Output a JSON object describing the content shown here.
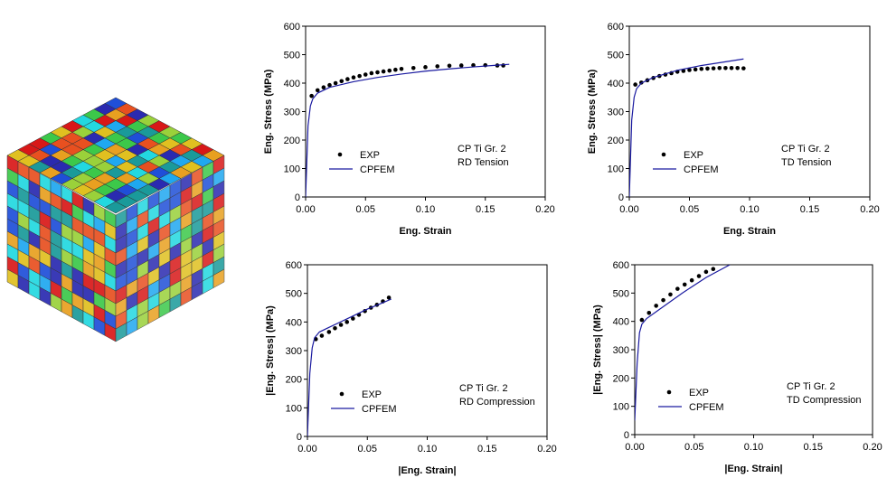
{
  "chart_data": [
    {
      "type": "line",
      "xlabel": "Eng. Strain",
      "ylabel": "Eng. Stress (MPa)",
      "annotation": [
        "CP Ti Gr. 2",
        "RD Tension"
      ],
      "xlim": [
        0,
        0.2
      ],
      "ylim": [
        0,
        600
      ],
      "xticks": [
        {
          "value": 0,
          "label": "0.00"
        },
        {
          "value": 0.05,
          "label": "0.05"
        },
        {
          "value": 0.1,
          "label": "0.10"
        },
        {
          "value": 0.15,
          "label": "0.15"
        },
        {
          "value": 0.2,
          "label": "0.20"
        }
      ],
      "yticks": [
        0,
        100,
        200,
        300,
        400,
        500,
        600
      ],
      "series": [
        {
          "name": "EXP",
          "style": "markers",
          "color": "#000000",
          "x": [
            0.005,
            0.01,
            0.015,
            0.02,
            0.025,
            0.03,
            0.035,
            0.04,
            0.045,
            0.05,
            0.055,
            0.06,
            0.065,
            0.07,
            0.075,
            0.08,
            0.09,
            0.1,
            0.11,
            0.12,
            0.13,
            0.14,
            0.15,
            0.16,
            0.165
          ],
          "values": [
            355,
            375,
            385,
            393,
            400,
            407,
            414,
            420,
            425,
            430,
            435,
            438,
            441,
            444,
            447,
            450,
            453,
            456,
            459,
            461,
            462,
            463,
            463,
            462,
            462
          ]
        },
        {
          "name": "CPFEM",
          "style": "line",
          "color": "#1a1aa0",
          "x": [
            0,
            0.002,
            0.004,
            0.006,
            0.01,
            0.02,
            0.04,
            0.06,
            0.08,
            0.1,
            0.12,
            0.14,
            0.16,
            0.17
          ],
          "values": [
            0,
            250,
            320,
            345,
            365,
            385,
            405,
            420,
            432,
            442,
            450,
            457,
            463,
            466
          ]
        }
      ]
    },
    {
      "type": "line",
      "xlabel": "Eng. Strain",
      "ylabel": "Eng. Stress (MPa)",
      "annotation": [
        "CP Ti Gr. 2",
        "TD Tension"
      ],
      "xlim": [
        0,
        0.2
      ],
      "ylim": [
        0,
        600
      ],
      "xticks": [
        {
          "value": 0,
          "label": "0.00"
        },
        {
          "value": 0.05,
          "label": "0.05"
        },
        {
          "value": 0.1,
          "label": "0.10"
        },
        {
          "value": 0.15,
          "label": "0.15"
        },
        {
          "value": 0.2,
          "label": "0.20"
        }
      ],
      "yticks": [
        0,
        100,
        200,
        300,
        400,
        500,
        600
      ],
      "series": [
        {
          "name": "EXP",
          "style": "markers",
          "color": "#000000",
          "x": [
            0.005,
            0.01,
            0.015,
            0.02,
            0.025,
            0.03,
            0.035,
            0.04,
            0.045,
            0.05,
            0.055,
            0.06,
            0.065,
            0.07,
            0.075,
            0.08,
            0.085,
            0.09,
            0.095
          ],
          "values": [
            395,
            402,
            410,
            418,
            425,
            430,
            435,
            440,
            443,
            446,
            448,
            450,
            451,
            452,
            453,
            453,
            453,
            453,
            452
          ]
        },
        {
          "name": "CPFEM",
          "style": "line",
          "color": "#1a1aa0",
          "x": [
            0,
            0.002,
            0.004,
            0.006,
            0.01,
            0.02,
            0.04,
            0.06,
            0.08,
            0.095
          ],
          "values": [
            0,
            270,
            350,
            380,
            400,
            420,
            445,
            462,
            475,
            485
          ]
        }
      ]
    },
    {
      "type": "line",
      "xlabel": "|Eng. Strain|",
      "ylabel": "|Eng. Stress| (MPa)",
      "annotation": [
        "CP Ti Gr. 2",
        "RD Compression"
      ],
      "xlim": [
        0,
        0.2
      ],
      "ylim": [
        0,
        600
      ],
      "xticks": [
        {
          "value": 0,
          "label": "0.00"
        },
        {
          "value": 0.05,
          "label": "0.05"
        },
        {
          "value": 0.1,
          "label": "0.10"
        },
        {
          "value": 0.15,
          "label": "0.15"
        },
        {
          "value": 0.2,
          "label": "0.20"
        }
      ],
      "yticks": [
        0,
        100,
        200,
        300,
        400,
        500,
        600
      ],
      "series": [
        {
          "name": "EXP",
          "style": "markers",
          "color": "#000000",
          "x": [
            0.007,
            0.012,
            0.018,
            0.023,
            0.028,
            0.033,
            0.038,
            0.043,
            0.048,
            0.053,
            0.058,
            0.063,
            0.068
          ],
          "values": [
            340,
            352,
            365,
            378,
            390,
            400,
            412,
            425,
            438,
            450,
            460,
            472,
            485
          ]
        },
        {
          "name": "CPFEM",
          "style": "line",
          "color": "#1a1aa0",
          "x": [
            0,
            0.002,
            0.004,
            0.006,
            0.01,
            0.02,
            0.03,
            0.04,
            0.05,
            0.06,
            0.07
          ],
          "values": [
            0,
            220,
            310,
            345,
            365,
            385,
            405,
            425,
            445,
            462,
            480
          ]
        }
      ]
    },
    {
      "type": "line",
      "xlabel": "|Eng. Strain|",
      "ylabel": "|Eng. Stress| (MPa)",
      "annotation": [
        "CP Ti Gr. 2",
        "TD Compression"
      ],
      "xlim": [
        0,
        0.2
      ],
      "ylim": [
        0,
        600
      ],
      "xticks": [
        {
          "value": 0,
          "label": "0.00"
        },
        {
          "value": 0.05,
          "label": "0.05"
        },
        {
          "value": 0.1,
          "label": "0.10"
        },
        {
          "value": 0.15,
          "label": "0.15"
        },
        {
          "value": 0.2,
          "label": "0.20"
        }
      ],
      "yticks": [
        0,
        100,
        200,
        300,
        400,
        500,
        600
      ],
      "series": [
        {
          "name": "EXP",
          "style": "markers",
          "color": "#000000",
          "x": [
            0.006,
            0.012,
            0.018,
            0.024,
            0.03,
            0.036,
            0.042,
            0.048,
            0.054,
            0.06,
            0.066
          ],
          "values": [
            405,
            430,
            455,
            475,
            495,
            515,
            530,
            545,
            560,
            575,
            585
          ]
        },
        {
          "name": "CPFEM",
          "style": "line",
          "color": "#1a1aa0",
          "x": [
            0,
            0.002,
            0.004,
            0.006,
            0.01,
            0.02,
            0.04,
            0.06,
            0.08
          ],
          "values": [
            50,
            250,
            360,
            390,
            410,
            440,
            500,
            555,
            600
          ]
        }
      ]
    }
  ]
}
